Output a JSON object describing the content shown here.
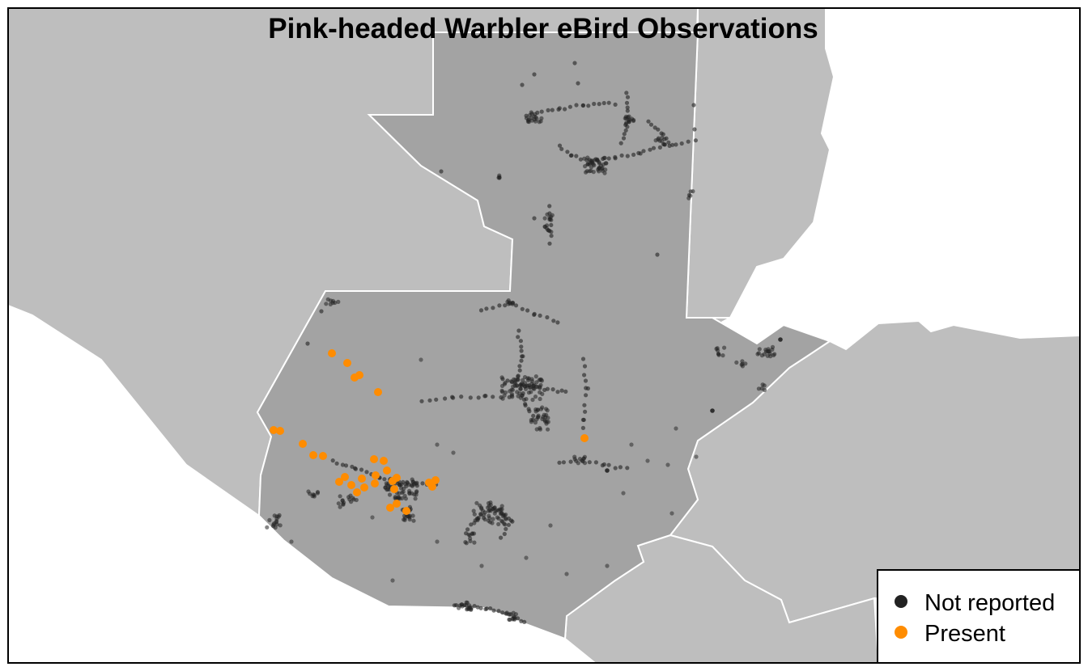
{
  "title": "Pink-headed Warbler eBird Observations",
  "legend": {
    "placement": "bottom-right",
    "items": [
      {
        "label": "Not reported",
        "color": "#222222"
      },
      {
        "label": "Present",
        "color": "#FF8C00"
      }
    ]
  },
  "colors": {
    "background_water": "#ffffff",
    "neighbor_countries": "#bebebe",
    "focus_country": "#a3a3a3",
    "borders": "#ffffff",
    "frame": "#000000"
  },
  "map": {
    "focus_country": "Guatemala",
    "observation_layers": [
      {
        "layer": "Not reported",
        "style": "semi-transparent dark points"
      },
      {
        "layer": "Present",
        "style": "opaque orange points"
      }
    ]
  }
}
